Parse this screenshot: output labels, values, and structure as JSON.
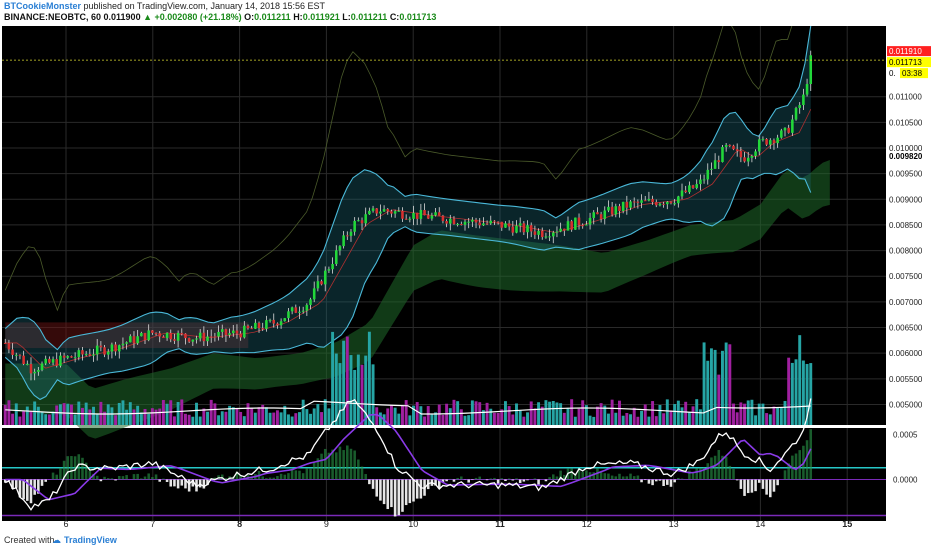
{
  "header": {
    "author": "BTCookieMonster",
    "published_text": "published on TradingView.com, January 14, 2018 15:56 EST",
    "symbol_line": "BINANCE:NEOBTC, 60",
    "last": "0.011900",
    "change": "+0.002080 (+21.18%)",
    "o_label": "O:",
    "o_val": "0.011211",
    "h_label": "H:",
    "h_val": "0.011921",
    "l_label": "L:",
    "l_val": "0.011211",
    "c_label": "C:",
    "c_val": "0.011713"
  },
  "footer": {
    "created_with": "Created with",
    "brand": "TradingView"
  },
  "colors": {
    "background": "#000000",
    "grid": "#2a2a2a",
    "up": "#22d83a",
    "down": "#d83030",
    "bollinger": "#4ab8d8",
    "volume_up": "#26a5a5",
    "volume_down": "#a020a0",
    "cloud_green": "#1f6a2a",
    "cloud_red": "#6a1414",
    "macd": "#ffffff",
    "signal": "#8a3ae8",
    "ref_line": "#26c7c7"
  },
  "chart_data": {
    "type": "candlestick",
    "symbol": "BINANCE:NEOBTC",
    "interval": "60",
    "x_ticks": [
      "6",
      "7",
      "8",
      "9",
      "10",
      "11",
      "12",
      "13",
      "14",
      "15"
    ],
    "y_ticks": [
      "0.011000",
      "0.010500",
      "0.010000",
      "0.009500",
      "0.009000",
      "0.008500",
      "0.008000",
      "0.007500",
      "0.007000",
      "0.006500",
      "0.006000",
      "0.005500",
      "0.005000"
    ],
    "y_range": [
      0.0046,
      0.0123
    ],
    "price_labels": [
      {
        "text": "0.011910",
        "value": 0.01191,
        "bg": "#ff2020",
        "fg": "#ffffff"
      },
      {
        "text": "0.011713",
        "value": 0.011713,
        "bg": "#ffff00",
        "fg": "#000000"
      },
      {
        "text": "0.",
        "value": 0.01157,
        "bg": "#ffffff",
        "fg": "#000000"
      },
      {
        "text": "03:38",
        "value": 0.01157,
        "bg": "#ffff00",
        "fg": "#000000"
      },
      {
        "text": "0.009820",
        "value": 0.00982,
        "bg": "#ffffff",
        "fg": "#000000"
      }
    ],
    "close_path": [
      [
        5.3,
        0.0062
      ],
      [
        5.6,
        0.0057
      ],
      [
        6.0,
        0.0059
      ],
      [
        6.5,
        0.0061
      ],
      [
        7.0,
        0.0064
      ],
      [
        7.5,
        0.0063
      ],
      [
        8.0,
        0.0064
      ],
      [
        8.4,
        0.0066
      ],
      [
        8.8,
        0.007
      ],
      [
        9.0,
        0.0076
      ],
      [
        9.3,
        0.0085
      ],
      [
        9.6,
        0.0088
      ],
      [
        10.0,
        0.0087
      ],
      [
        10.5,
        0.0086
      ],
      [
        11.0,
        0.0085
      ],
      [
        11.5,
        0.00835
      ],
      [
        12.0,
        0.0086
      ],
      [
        12.5,
        0.0089
      ],
      [
        13.0,
        0.009
      ],
      [
        13.3,
        0.0093
      ],
      [
        13.6,
        0.01
      ],
      [
        13.8,
        0.0098
      ],
      [
        14.0,
        0.0101
      ],
      [
        14.3,
        0.0103
      ],
      [
        14.5,
        0.011
      ],
      [
        14.58,
        0.011713
      ]
    ],
    "volume_baseline_label": "",
    "macd_y_ticks": [
      "0.0005",
      "0.0000"
    ],
    "macd_range": [
      -0.00045,
      0.00055
    ]
  }
}
